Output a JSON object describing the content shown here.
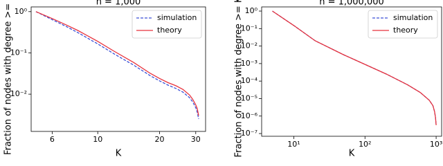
{
  "chart_data": [
    {
      "type": "line",
      "title": "n = 1,000",
      "xlabel": "K",
      "ylabel": "Fraction of nodes with degree >= K",
      "xscale": "log",
      "yscale": "log",
      "xlim": [
        4.74,
        33.5
      ],
      "ylim": [
        0.00125,
        1.3
      ],
      "xticks": [
        6,
        10,
        20,
        30
      ],
      "yticks": [
        {
          "value": 1,
          "label": "10⁰"
        },
        {
          "value": 0.1,
          "label": "10⁻¹"
        },
        {
          "value": 0.01,
          "label": "10⁻²"
        }
      ],
      "legend": "upper right",
      "x": [
        5,
        6,
        7,
        8,
        10,
        12,
        15,
        18,
        20,
        22,
        24,
        26,
        28,
        29,
        30,
        30.5,
        31
      ],
      "series": [
        {
          "name": "simulation",
          "color": "#3b4fd8",
          "dash": true,
          "values": [
            1.0,
            0.64,
            0.44,
            0.31,
            0.165,
            0.095,
            0.05,
            0.028,
            0.021,
            0.0165,
            0.0138,
            0.0112,
            0.0082,
            0.0065,
            0.0047,
            0.0037,
            0.0025
          ]
        },
        {
          "name": "theory",
          "color": "#e8323c",
          "dash": false,
          "values": [
            1.0,
            0.68,
            0.48,
            0.35,
            0.19,
            0.11,
            0.058,
            0.032,
            0.024,
            0.019,
            0.016,
            0.013,
            0.0095,
            0.0075,
            0.0055,
            0.0045,
            0.003
          ]
        }
      ]
    },
    {
      "type": "line",
      "title": "n = 1,000,000",
      "xlabel": "K",
      "ylabel": "Fraction of nodes with degree >= K",
      "xscale": "log",
      "yscale": "log",
      "xlim": [
        3.53,
        1194
      ],
      "ylim": [
        7e-08,
        1.73
      ],
      "xticks": [
        {
          "value": 10,
          "label": "10¹"
        },
        {
          "value": 100,
          "label": "10²"
        },
        {
          "value": 1000,
          "label": "10³"
        }
      ],
      "yticks": [
        {
          "value": 1,
          "label": "10⁰"
        },
        {
          "value": 0.1,
          "label": "10⁻¹"
        },
        {
          "value": 0.01,
          "label": "10⁻²"
        },
        {
          "value": 0.001,
          "label": "10⁻³"
        },
        {
          "value": 0.0001,
          "label": "10⁻⁴"
        },
        {
          "value": 1e-05,
          "label": "10⁻⁵"
        },
        {
          "value": 1e-06,
          "label": "10⁻⁶"
        },
        {
          "value": 1e-07,
          "label": "10⁻⁷"
        }
      ],
      "legend": "upper right",
      "x": [
        5,
        10,
        20,
        50,
        100,
        200,
        400,
        600,
        800,
        900,
        950,
        980,
        1000
      ],
      "series": [
        {
          "name": "simulation",
          "color": "#3b4fd8",
          "dash": true,
          "values": [
            1.0,
            0.15,
            0.02,
            0.0032,
            0.0009,
            0.00025,
            6e-05,
            2.2e-05,
            8e-06,
            4e-06,
            1.8e-06,
            8e-07,
            3e-07
          ]
        },
        {
          "name": "theory",
          "color": "#e8323c",
          "dash": false,
          "values": [
            1.0,
            0.15,
            0.02,
            0.0032,
            0.0009,
            0.00025,
            6e-05,
            2.2e-05,
            8e-06,
            4e-06,
            1.8e-06,
            8e-07,
            3e-07
          ]
        }
      ]
    }
  ]
}
